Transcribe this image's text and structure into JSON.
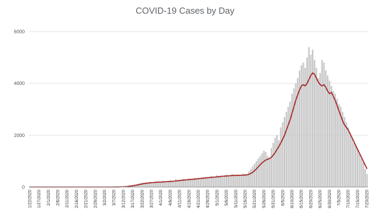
{
  "chart_data": {
    "type": "bar",
    "title": "COVID-19 Cases by Day",
    "xlabel": "",
    "ylabel": "",
    "ylim": [
      0,
      6000
    ],
    "yticks": [
      0,
      2000,
      4000,
      6000
    ],
    "grid": true,
    "legend": "none",
    "bar_color": "#c8c8c8",
    "line_color": "#a52a2a",
    "gridline_color": "#e6e6e6",
    "tick_labels": [
      "1/22/2020",
      "1/27/2020",
      "2/1/2020",
      "2/6/2020",
      "2/11/2020",
      "2/16/2020",
      "2/21/2020",
      "2/26/2020",
      "3/2/2020",
      "3/7/2020",
      "3/12/2020",
      "3/17/2020",
      "3/22/2020",
      "3/27/2020",
      "4/1/2020",
      "4/6/2020",
      "4/11/2020",
      "4/16/2020",
      "4/21/2020",
      "4/26/2020",
      "5/1/2020",
      "5/6/2020",
      "5/11/2020",
      "5/16/2020",
      "5/21/2020",
      "5/26/2020",
      "5/31/2020",
      "6/5/2020",
      "6/10/2020",
      "6/15/2020",
      "6/20/2020",
      "6/25/2020",
      "6/30/2020",
      "7/5/2020",
      "7/10/2020",
      "7/15/2020",
      "7/20/2020",
      "7/25/2020",
      "7/30/2020"
    ],
    "series": [
      {
        "name": "",
        "kind": "bar",
        "values": [
          0,
          0,
          0,
          0,
          0,
          0,
          0,
          0,
          0,
          0,
          0,
          0,
          0,
          0,
          0,
          0,
          0,
          0,
          0,
          0,
          0,
          0,
          0,
          0,
          0,
          0,
          0,
          0,
          0,
          0,
          0,
          0,
          0,
          0,
          0,
          0,
          0,
          0,
          0,
          0,
          0,
          0,
          0,
          0,
          1,
          2,
          3,
          5,
          8,
          12,
          18,
          25,
          35,
          50,
          60,
          80,
          95,
          110,
          130,
          150,
          160,
          170,
          180,
          150,
          200,
          190,
          185,
          210,
          190,
          220,
          180,
          250,
          200,
          230,
          210,
          260,
          240,
          220,
          300,
          250,
          280,
          260,
          310,
          280,
          260,
          330,
          300,
          290,
          350,
          320,
          360,
          300,
          380,
          340,
          400,
          380,
          360,
          420,
          380,
          400,
          460,
          420,
          440,
          380,
          460,
          480,
          450,
          420,
          500,
          470,
          440,
          480,
          460,
          420,
          520,
          500,
          480,
          600,
          700,
          800,
          900,
          1000,
          1100,
          1200,
          1300,
          1400,
          1350,
          1200,
          1100,
          1500,
          1700,
          1900,
          2000,
          1800,
          2300,
          2500,
          2700,
          2900,
          3100,
          3300,
          3600,
          3800,
          4000,
          4200,
          4500,
          4700,
          4800,
          4600,
          5000,
          5400,
          5100,
          5300,
          4900,
          4600,
          4200,
          4400,
          4900,
          4800,
          4500,
          4300,
          4100,
          3900,
          3700,
          3600,
          3400,
          3200,
          3100,
          2900,
          2700,
          2500,
          2300,
          2100,
          1900,
          1700,
          1600,
          1450,
          1300,
          1100,
          950,
          700,
          500
        ]
      },
      {
        "name": "",
        "kind": "line",
        "values": [
          0,
          0,
          0,
          0,
          0,
          0,
          0,
          0,
          0,
          0,
          0,
          0,
          0,
          0,
          0,
          0,
          0,
          0,
          0,
          0,
          0,
          0,
          0,
          0,
          0,
          0,
          0,
          0,
          0,
          0,
          0,
          0,
          0,
          0,
          0,
          0,
          0,
          0,
          0,
          0,
          0,
          0,
          0,
          0,
          0,
          1,
          2,
          3,
          5,
          7,
          10,
          15,
          20,
          28,
          37,
          48,
          60,
          73,
          88,
          103,
          117,
          130,
          143,
          150,
          160,
          168,
          172,
          178,
          183,
          188,
          190,
          195,
          200,
          205,
          210,
          215,
          220,
          225,
          235,
          242,
          250,
          257,
          265,
          272,
          278,
          285,
          292,
          298,
          305,
          312,
          320,
          328,
          335,
          343,
          350,
          358,
          365,
          372,
          380,
          385,
          392,
          400,
          407,
          413,
          420,
          425,
          430,
          436,
          440,
          445,
          448,
          450,
          452,
          455,
          458,
          460,
          470,
          490,
          520,
          570,
          630,
          700,
          780,
          860,
          930,
          990,
          1040,
          1070,
          1100,
          1150,
          1230,
          1330,
          1450,
          1570,
          1700,
          1850,
          2000,
          2200,
          2400,
          2600,
          2850,
          3100,
          3350,
          3550,
          3750,
          3900,
          3950,
          3900,
          4000,
          4150,
          4300,
          4400,
          4350,
          4200,
          4050,
          3950,
          3900,
          3950,
          3850,
          3700,
          3600,
          3650,
          3500,
          3350,
          3150,
          2950,
          2750,
          2550,
          2400,
          2300,
          2200,
          2050,
          1900,
          1750,
          1600,
          1450,
          1300,
          1150,
          1000,
          850,
          700
        ]
      }
    ]
  }
}
